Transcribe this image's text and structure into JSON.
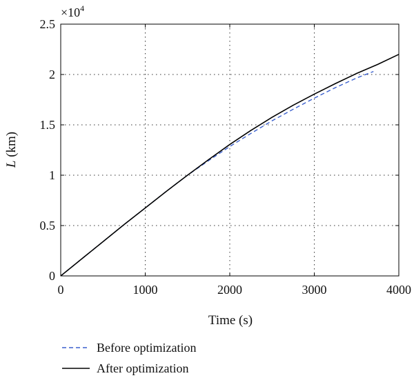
{
  "chart_data": {
    "type": "line",
    "title": "",
    "xlabel": "Time (s)",
    "ylabel_var": "L",
    "ylabel_unit": " (km)",
    "y_multiplier": {
      "base": "×10",
      "exponent": "4"
    },
    "xlim": [
      0,
      4000
    ],
    "ylim": [
      0,
      2.5
    ],
    "x_ticks": [
      0,
      1000,
      2000,
      3000,
      4000
    ],
    "y_ticks": [
      0,
      0.5,
      1,
      1.5,
      2,
      2.5
    ],
    "x_tick_labels": [
      "0",
      "1000",
      "2000",
      "3000",
      "4000"
    ],
    "y_tick_labels": [
      "0",
      "0.5",
      "1",
      "1.5",
      "2",
      "2.5"
    ],
    "grid": true,
    "legend_position": "bottom-left-outside",
    "series": [
      {
        "name": "Before optimization",
        "color": "#3a5fcd",
        "style": "dashed",
        "x": [
          0,
          250,
          500,
          750,
          1000,
          1250,
          1500,
          1750,
          2000,
          2250,
          2500,
          2750,
          3000,
          3250,
          3500,
          3700
        ],
        "y": [
          0,
          0.17,
          0.34,
          0.51,
          0.675,
          0.84,
          1.0,
          1.145,
          1.285,
          1.415,
          1.54,
          1.655,
          1.765,
          1.87,
          1.965,
          2.03
        ]
      },
      {
        "name": "After optimization",
        "color": "#000000",
        "style": "solid",
        "x": [
          0,
          250,
          500,
          750,
          1000,
          1250,
          1500,
          1750,
          2000,
          2250,
          2500,
          2750,
          3000,
          3250,
          3500,
          3750,
          4000
        ],
        "y": [
          0,
          0.17,
          0.34,
          0.51,
          0.675,
          0.84,
          1.0,
          1.155,
          1.305,
          1.445,
          1.575,
          1.695,
          1.805,
          1.91,
          2.01,
          2.1,
          2.2
        ]
      }
    ]
  }
}
